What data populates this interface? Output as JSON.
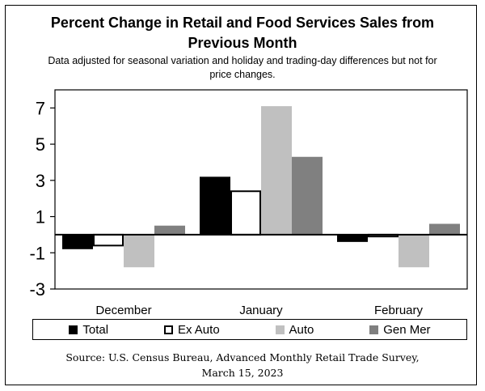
{
  "chart_data": {
    "type": "bar",
    "title_line1": "Percent Change in Retail and Food Services Sales from",
    "title_line2": "Previous Month",
    "subtitle_line1": "Data adjusted for seasonal variation and holiday and trading-day differences but not for",
    "subtitle_line2": "price changes.",
    "categories": [
      "December",
      "January",
      "February"
    ],
    "series": [
      {
        "name": "Total",
        "values": [
          -0.8,
          3.2,
          -0.4
        ],
        "color": "#000000"
      },
      {
        "name": "Ex Auto",
        "values": [
          -0.6,
          2.4,
          -0.1
        ],
        "color": "#ffffff"
      },
      {
        "name": "Auto",
        "values": [
          -1.8,
          7.1,
          -1.8
        ],
        "color": "#c0c0c0"
      },
      {
        "name": "Gen Mer",
        "values": [
          0.5,
          4.3,
          0.6
        ],
        "color": "#808080"
      }
    ],
    "yticks": [
      "-3",
      "-1",
      "1",
      "3",
      "5",
      "7"
    ],
    "ylim": [
      -3,
      8
    ],
    "grid": false,
    "legend_position": "bottom",
    "source_line1": "Source: U.S. Census Bureau, Advanced Monthly Retail Trade Survey,",
    "source_line2": "March 15, 2023"
  }
}
